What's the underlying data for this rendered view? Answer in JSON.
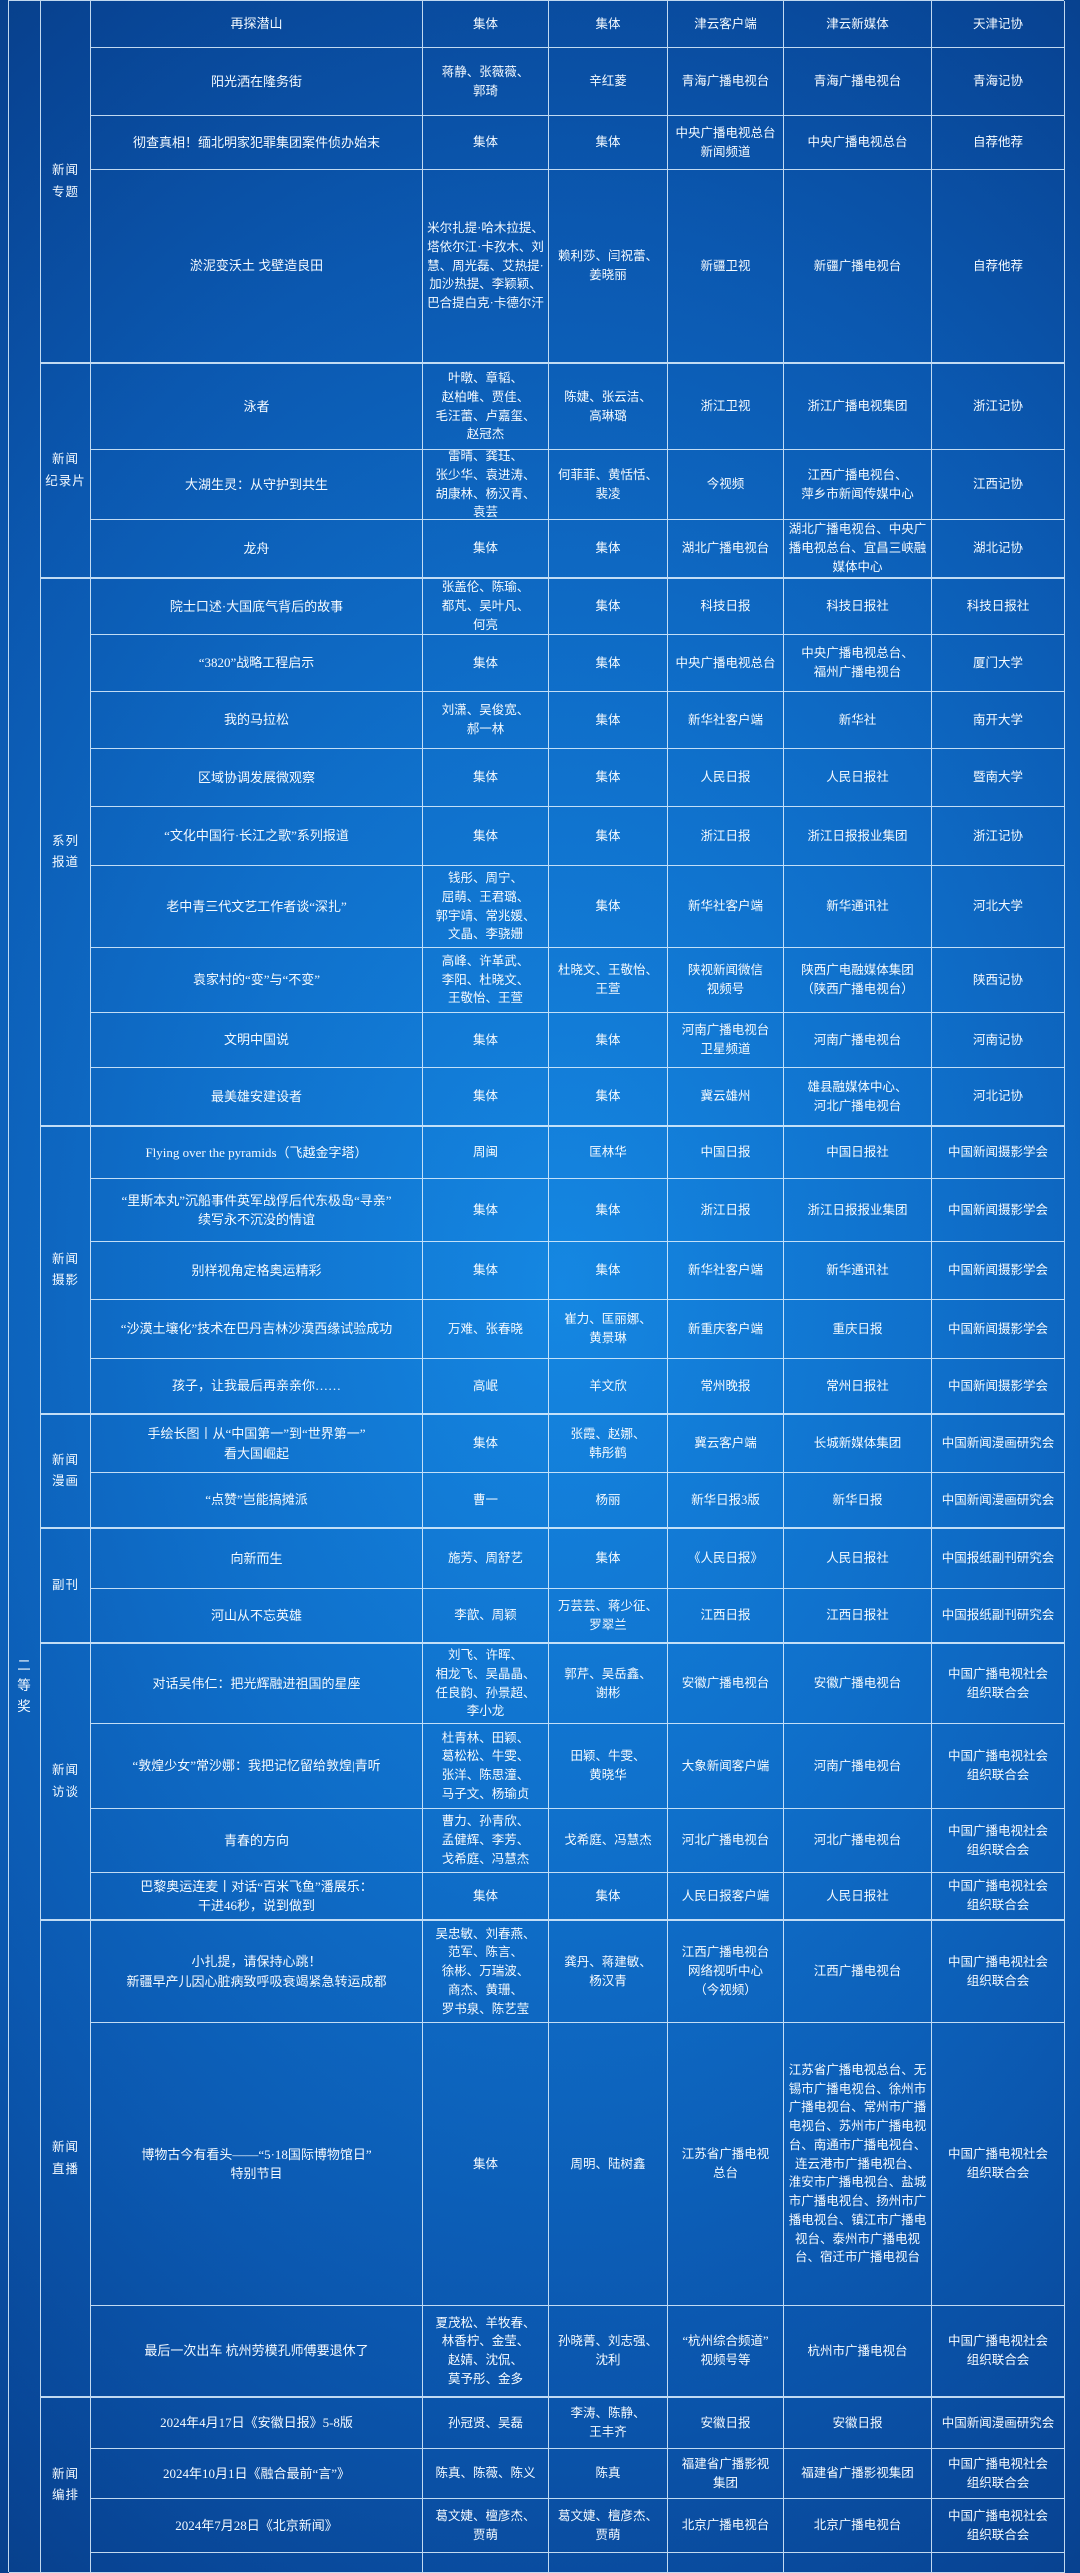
{
  "tier_label": "二\n等\n奖",
  "sections": [
    {
      "label": "新闻\n专题",
      "rows": [
        {
          "title": "再探潜山",
          "creators": "集体",
          "editors": "集体",
          "outlet": "津云客户端",
          "submitter": "津云新媒体",
          "recommender": "天津记协"
        },
        {
          "title": "阳光洒在隆务街",
          "creators": "蒋静、张薇薇、\n郭琦",
          "editors": "辛红菱",
          "outlet": "青海广播电视台",
          "submitter": "青海广播电视台",
          "recommender": "青海记协"
        },
        {
          "title": "彻查真相！缅北明家犯罪集团案件侦办始末",
          "creators": "集体",
          "editors": "集体",
          "outlet": "中央广播电视总台\n新闻频道",
          "submitter": "中央广播电视总台",
          "recommender": "自荐他荐"
        },
        {
          "title": "淤泥变沃土 戈壁造良田",
          "creators": "米尔扎提·哈木拉提、塔依尔江·卡孜木、刘慧、周光磊、艾热提·加沙热提、李颖颖、巴合提白克·卡德尔汗",
          "editors": "赖利莎、闫祝蕾、\n姜晓丽",
          "outlet": "新疆卫视",
          "submitter": "新疆广播电视台",
          "recommender": "自荐他荐"
        }
      ]
    },
    {
      "label": "新闻\n纪录片",
      "rows": [
        {
          "title": "泳者",
          "creators": "叶暾、章韬、\n赵柏唯、贾佳、\n毛汪蕾、卢嘉玺、\n赵冠杰",
          "editors": "陈婕、张云洁、\n高琳璐",
          "outlet": "浙江卫视",
          "submitter": "浙江广播电视集团",
          "recommender": "浙江记协"
        },
        {
          "title": "大湖生灵：从守护到共生",
          "creators": "雷晴、龚珏、\n张少华、袁进涛、\n胡康林、杨汉青、\n袁芸",
          "editors": "何菲菲、黄恬恬、\n裴凌",
          "outlet": "今视频",
          "submitter": "江西广播电视台、\n萍乡市新闻传媒中心",
          "recommender": "江西记协"
        },
        {
          "title": "龙舟",
          "creators": "集体",
          "editors": "集体",
          "outlet": "湖北广播电视台",
          "submitter": "湖北广播电视台、中央广播电视总台、宜昌三峡融媒体中心",
          "recommender": "湖北记协"
        }
      ]
    },
    {
      "label": "系列\n报道",
      "rows": [
        {
          "title": "院士口述·大国底气背后的故事",
          "creators": "张盖伦、陈瑜、\n都芃、吴叶凡、\n何亮",
          "editors": "集体",
          "outlet": "科技日报",
          "submitter": "科技日报社",
          "recommender": "科技日报社"
        },
        {
          "title": "“3820”战略工程启示",
          "creators": "集体",
          "editors": "集体",
          "outlet": "中央广播电视总台",
          "submitter": "中央广播电视总台、\n福州广播电视台",
          "recommender": "厦门大学"
        },
        {
          "title": "我的马拉松",
          "creators": "刘潇、吴俊宽、\n郝一林",
          "editors": "集体",
          "outlet": "新华社客户端",
          "submitter": "新华社",
          "recommender": "南开大学"
        },
        {
          "title": "区域协调发展微观察",
          "creators": "集体",
          "editors": "集体",
          "outlet": "人民日报",
          "submitter": "人民日报社",
          "recommender": "暨南大学"
        },
        {
          "title": "“文化中国行·长江之歌”系列报道",
          "creators": "集体",
          "editors": "集体",
          "outlet": "浙江日报",
          "submitter": "浙江日报报业集团",
          "recommender": "浙江记协"
        },
        {
          "title": "老中青三代文艺工作者谈“深扎”",
          "creators": "钱彤、周宁、\n屈萌、王君璐、\n郭宇靖、常兆媛、\n文晶、李骁姗",
          "editors": "集体",
          "outlet": "新华社客户端",
          "submitter": "新华通讯社",
          "recommender": "河北大学"
        },
        {
          "title": "袁家村的“变”与“不变”",
          "creators": "高峰、许革武、\n李阳、杜晓文、\n王敬怡、王萱",
          "editors": "杜晓文、王敬怡、\n王萱",
          "outlet": "陕视新闻微信\n视频号",
          "submitter": "陕西广电融媒体集团\n（陕西广播电视台）",
          "recommender": "陕西记协"
        },
        {
          "title": "文明中国说",
          "creators": "集体",
          "editors": "集体",
          "outlet": "河南广播电视台\n卫星频道",
          "submitter": "河南广播电视台",
          "recommender": "河南记协"
        },
        {
          "title": "最美雄安建设者",
          "creators": "集体",
          "editors": "集体",
          "outlet": "冀云雄州",
          "submitter": "雄县融媒体中心、\n河北广播电视台",
          "recommender": "河北记协"
        }
      ]
    },
    {
      "label": "新闻\n摄影",
      "rows": [
        {
          "title": "Flying over the pyramids（飞越金字塔）",
          "creators": "周闽",
          "editors": "匡林华",
          "outlet": "中国日报",
          "submitter": "中国日报社",
          "recommender": "中国新闻摄影学会"
        },
        {
          "title": "“里斯本丸”沉船事件英军战俘后代东极岛“寻亲”\n续写永不沉没的情谊",
          "creators": "集体",
          "editors": "集体",
          "outlet": "浙江日报",
          "submitter": "浙江日报报业集团",
          "recommender": "中国新闻摄影学会"
        },
        {
          "title": "别样视角定格奥运精彩",
          "creators": "集体",
          "editors": "集体",
          "outlet": "新华社客户端",
          "submitter": "新华通讯社",
          "recommender": "中国新闻摄影学会"
        },
        {
          "title": "“沙漠土壤化”技术在巴丹吉林沙漠西缘试验成功",
          "creators": "万难、张春晓",
          "editors": "崔力、匡丽娜、\n黄景琳",
          "outlet": "新重庆客户端",
          "submitter": "重庆日报",
          "recommender": "中国新闻摄影学会"
        },
        {
          "title": "孩子，让我最后再亲亲你……",
          "creators": "高岷",
          "editors": "羊文欣",
          "outlet": "常州晚报",
          "submitter": "常州日报社",
          "recommender": "中国新闻摄影学会"
        }
      ]
    },
    {
      "label": "新闻\n漫画",
      "rows": [
        {
          "title": "手绘长图丨从“中国第一”到“世界第一”\n看大国崛起",
          "creators": "集体",
          "editors": "张霞、赵娜、\n韩彤鹤",
          "outlet": "冀云客户端",
          "submitter": "长城新媒体集团",
          "recommender": "中国新闻漫画研究会"
        },
        {
          "title": "“点赞”岂能搞摊派",
          "creators": "曹一",
          "editors": "杨丽",
          "outlet": "新华日报3版",
          "submitter": "新华日报",
          "recommender": "中国新闻漫画研究会"
        }
      ]
    },
    {
      "label": "副刊",
      "rows": [
        {
          "title": "向新而生",
          "creators": "施芳、周舒艺",
          "editors": "集体",
          "outlet": "《人民日报》",
          "submitter": "人民日报社",
          "recommender": "中国报纸副刊研究会"
        },
        {
          "title": "河山从不忘英雄",
          "creators": "李歆、周颖",
          "editors": "万芸芸、蒋少征、\n罗翠兰",
          "outlet": "江西日报",
          "submitter": "江西日报社",
          "recommender": "中国报纸副刊研究会"
        }
      ]
    },
    {
      "label": "新闻\n访谈",
      "rows": [
        {
          "title": "对话吴伟仁：把光辉融进祖国的星座",
          "creators": "刘飞、许晖、\n相龙飞、吴晶晶、\n任良韵、孙景超、\n李小龙",
          "editors": "郭芹、吴岳鑫、\n谢彬",
          "outlet": "安徽广播电视台",
          "submitter": "安徽广播电视台",
          "recommender": "中国广播电视社会\n组织联合会"
        },
        {
          "title": "“敦煌少女”常沙娜：我把记忆留给敦煌|青听",
          "creators": "杜青林、田颖、\n葛松松、牛雯、\n张洋、陈思潼、\n马子文、杨瑜贞",
          "editors": "田颖、牛雯、\n黄晓华",
          "outlet": "大象新闻客户端",
          "submitter": "河南广播电视台",
          "recommender": "中国广播电视社会\n组织联合会"
        },
        {
          "title": "青春的方向",
          "creators": "曹力、孙青欣、\n孟健辉、李芳、\n戈希庭、冯慧杰",
          "editors": "戈希庭、冯慧杰",
          "outlet": "河北广播电视台",
          "submitter": "河北广播电视台",
          "recommender": "中国广播电视社会\n组织联合会"
        },
        {
          "title": "巴黎奥运连麦丨对话“百米飞鱼”潘展乐：\n干进46秒，说到做到",
          "creators": "集体",
          "editors": "集体",
          "outlet": "人民日报客户端",
          "submitter": "人民日报社",
          "recommender": "中国广播电视社会\n组织联合会"
        }
      ]
    },
    {
      "label": "新闻\n直播",
      "rows": [
        {
          "title": "小扎提，请保持心跳！\n新疆早产儿因心脏病致呼吸衰竭紧急转运成都",
          "creators": "吴忠敏、刘春燕、\n范军、陈言、\n徐彬、万瑞波、\n商杰、黄珊、\n罗书泉、陈艺莹",
          "editors": "龚丹、蒋建敏、\n杨汉青",
          "outlet": "江西广播电视台\n网络视听中心\n（今视频）",
          "submitter": "江西广播电视台",
          "recommender": "中国广播电视社会\n组织联合会"
        },
        {
          "title": "博物古今有看头——“5·18国际博物馆日”\n特别节目",
          "creators": "集体",
          "editors": "周明、陆树鑫",
          "outlet": "江苏省广播电视\n总台",
          "submitter": "江苏省广播电视总台、无锡市广播电视台、徐州市广播电视台、常州市广播电视台、苏州市广播电视台、南通市广播电视台、连云港市广播电视台、\n淮安市广播电视台、盐城市广播电视台、扬州市广播电视台、镇江市广播电视台、泰州市广播电视台、宿迁市广播电视台",
          "recommender": "中国广播电视社会\n组织联合会"
        },
        {
          "title": "最后一次出车 杭州劳模孔师傅要退休了",
          "creators": "夏茂松、羊牧春、\n林香柠、金莹、\n赵婧、沈侃、\n莫予彤、金多",
          "editors": "孙晓菁、刘志强、\n沈利",
          "outlet": "“杭州综合频道”\n视频号等",
          "submitter": "杭州市广播电视台",
          "recommender": "中国广播电视社会\n组织联合会"
        }
      ]
    },
    {
      "label": "新闻\n编排",
      "rows": [
        {
          "title": "2024年4月17日《安徽日报》5-8版",
          "creators": "孙冠贤、吴磊",
          "editors": "李涛、陈静、\n王丰齐",
          "outlet": "安徽日报",
          "submitter": "安徽日报",
          "recommender": "中国新闻漫画研究会"
        },
        {
          "title": "2024年10月1日《融合最前“言”》",
          "creators": "陈真、陈薇、陈义",
          "editors": "陈真",
          "outlet": "福建省广播影视\n集团",
          "submitter": "福建省广播影视集团",
          "recommender": "中国广播电视社会\n组织联合会"
        },
        {
          "title": "2024年7月28日《北京新闻》",
          "creators": "葛文婕、檀彦杰、\n贾萌",
          "editors": "葛文婕、檀彦杰、\n贾萌",
          "outlet": "北京广播电视台",
          "submitter": "北京广播电视台",
          "recommender": "中国广播电视社会\n组织联合会"
        }
      ]
    }
  ]
}
